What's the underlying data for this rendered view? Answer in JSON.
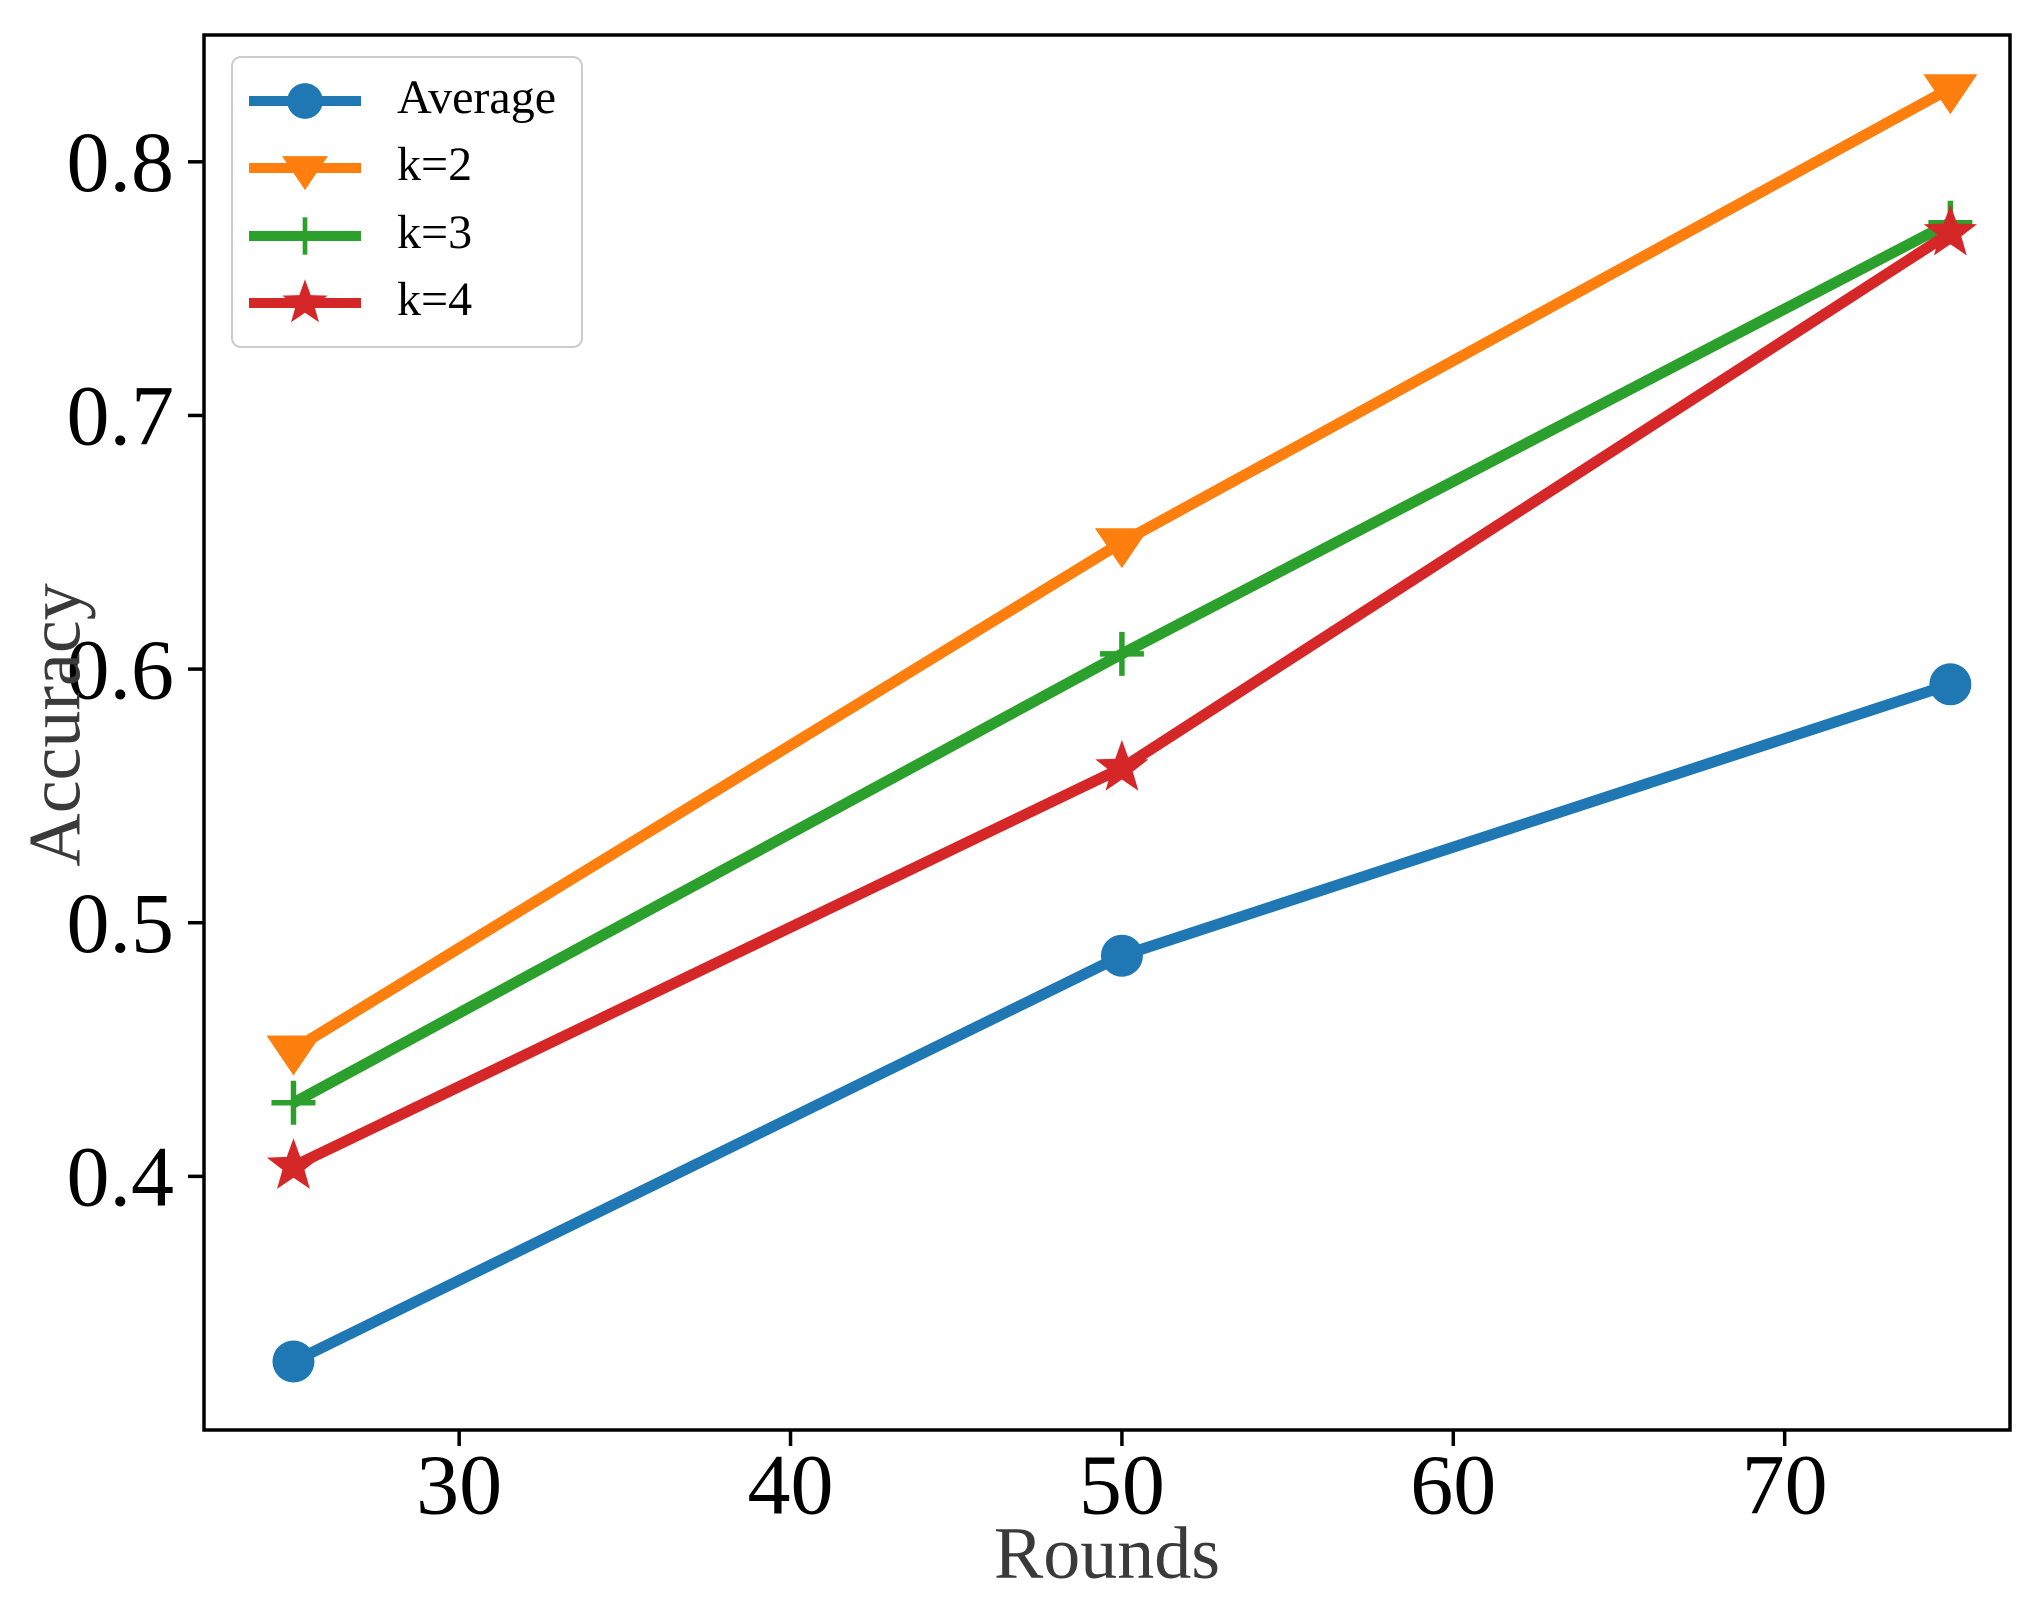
{
  "chart_data": {
    "type": "line",
    "title": "",
    "xlabel": "Rounds",
    "ylabel": "Accuracy",
    "x": [
      25,
      50,
      75
    ],
    "series": [
      {
        "name": "Average",
        "color": "#1f77b4",
        "marker": "circle",
        "values": [
          0.327,
          0.487,
          0.594
        ]
      },
      {
        "name": "k=2",
        "color": "#ff7f0e",
        "marker": "triangle-down",
        "values": [
          0.45,
          0.65,
          0.829
        ]
      },
      {
        "name": "k=3",
        "color": "#2ca02c",
        "marker": "plus",
        "values": [
          0.429,
          0.606,
          0.776
        ]
      },
      {
        "name": "k=4",
        "color": "#d62728",
        "marker": "star",
        "values": [
          0.404,
          0.561,
          0.772
        ]
      }
    ],
    "xticks": [
      30,
      40,
      50,
      60,
      70
    ],
    "xtick_labels": [
      "30",
      "40",
      "50",
      "60",
      "70"
    ],
    "yticks": [
      0.4,
      0.5,
      0.6,
      0.7,
      0.8
    ],
    "ytick_labels": [
      "0.4",
      "0.5",
      "0.6",
      "0.7",
      "0.8"
    ],
    "xlim": [
      22.3,
      76.8
    ],
    "ylim": [
      0.3,
      0.85
    ],
    "grid": false,
    "legend_position": "upper left",
    "axis_color": "#000000",
    "label_color": "#3a3a3a",
    "background": "#ffffff"
  }
}
